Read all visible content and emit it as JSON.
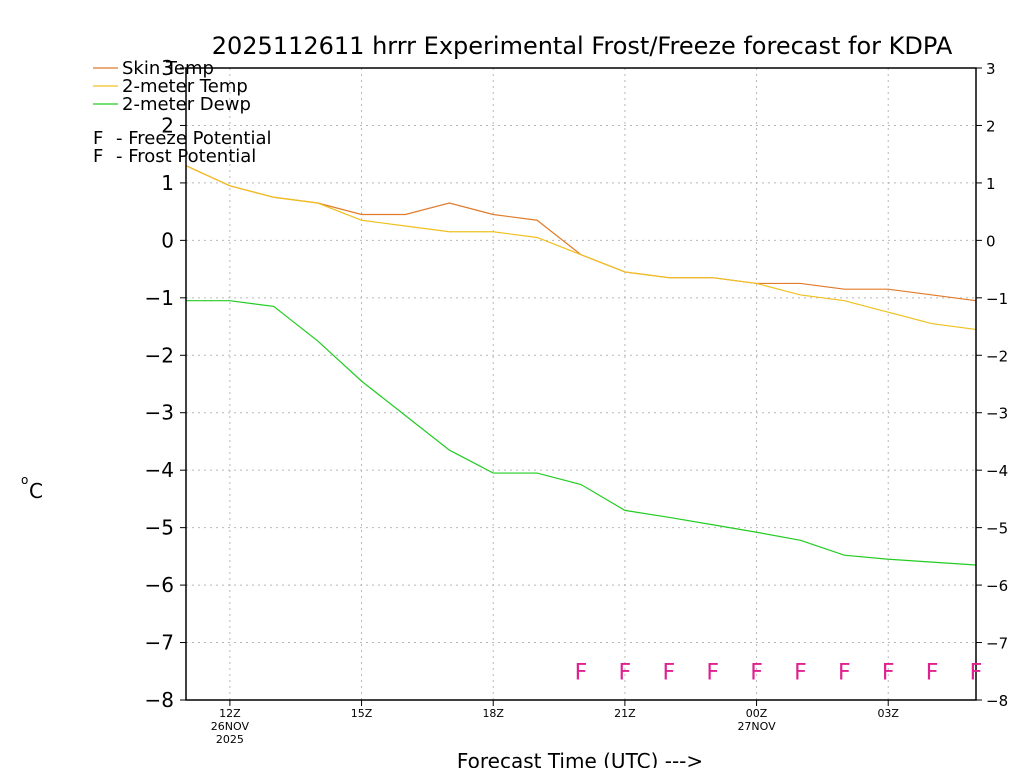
{
  "chart_data": {
    "type": "line",
    "title": "2025112611 hrrr Experimental Frost/Freeze forecast for KDPA",
    "xlabel": "Forecast Time (UTC) --->",
    "ylabel": "°C",
    "ylabel_main": "o",
    "ylabel_unit": "C",
    "ylim": [
      -8,
      3
    ],
    "yticks": [
      3,
      2,
      1,
      0,
      -1,
      -2,
      -3,
      -4,
      -5,
      -6,
      -7,
      -8
    ],
    "ytick_labels_left": [
      "3",
      "2",
      "1",
      "0",
      "−1",
      "−2",
      "−3",
      "−4",
      "−5",
      "−6",
      "−7",
      "−8"
    ],
    "ytick_labels_right": [
      "3",
      "2",
      "1",
      "0",
      "−1",
      "−2",
      "−3",
      "−4",
      "−5",
      "−6",
      "−7",
      "−8"
    ],
    "xlim": [
      11,
      29
    ],
    "x": [
      11,
      12,
      13,
      14,
      15,
      16,
      17,
      18,
      19,
      20,
      21,
      22,
      23,
      24,
      25,
      26,
      27,
      28,
      29
    ],
    "xtick_positions": [
      12,
      15,
      18,
      21,
      24,
      27
    ],
    "xtick_labels": [
      {
        "line1": "12Z",
        "line2": "26NOV",
        "line3": "2025"
      },
      {
        "line1": "15Z",
        "line2": "",
        "line3": ""
      },
      {
        "line1": "18Z",
        "line2": "",
        "line3": ""
      },
      {
        "line1": "21Z",
        "line2": "",
        "line3": ""
      },
      {
        "line1": "00Z",
        "line2": "27NOV",
        "line3": ""
      },
      {
        "line1": "03Z",
        "line2": "",
        "line3": ""
      }
    ],
    "series": [
      {
        "name": "Skin Temp",
        "color": "#e07b2a",
        "values": [
          1.3,
          0.95,
          0.75,
          0.65,
          0.45,
          0.45,
          0.65,
          0.45,
          0.35,
          -0.25,
          -0.55,
          -0.65,
          -0.65,
          -0.75,
          -0.75,
          -0.85,
          -0.85,
          -0.95,
          -1.05
        ]
      },
      {
        "name": "2-meter Temp",
        "color": "#f0c020",
        "values": [
          1.3,
          0.95,
          0.75,
          0.65,
          0.35,
          0.25,
          0.15,
          0.15,
          0.05,
          -0.25,
          -0.55,
          -0.65,
          -0.65,
          -0.75,
          -0.95,
          -1.05,
          -1.25,
          -1.45,
          -1.55
        ]
      },
      {
        "name": "2-meter Dewp",
        "color": "#22cc22",
        "values": [
          -1.05,
          -1.05,
          -1.15,
          -1.75,
          -2.45,
          -3.05,
          -3.65,
          -4.05,
          -4.05,
          -4.25,
          -4.7,
          -4.82,
          -4.95,
          -5.08,
          -5.22,
          -5.48,
          -5.55,
          -5.6,
          -5.65
        ]
      }
    ],
    "markers": {
      "symbol": "F",
      "y_value": -7.5,
      "freeze_color": "#e0208f",
      "frost_color": "#4a55e0",
      "freeze_x": [
        20,
        21,
        22,
        23,
        24,
        25,
        26,
        27,
        28,
        29
      ],
      "frost_x": []
    },
    "legend": {
      "placement": "top-left",
      "line_items": [
        "Skin Temp",
        "2-meter Temp",
        "2-meter Dewp"
      ],
      "potential_items": [
        {
          "symbol": "F",
          "color": "#e0208f",
          "text": "- Freeze Potential"
        },
        {
          "symbol": "F",
          "color": "#4a55e0",
          "text": "- Frost Potential"
        }
      ]
    },
    "grid": true
  }
}
